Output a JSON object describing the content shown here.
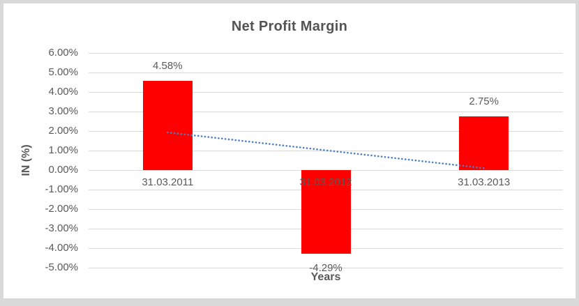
{
  "chart_data": {
    "type": "bar",
    "title": "Net Profit Margin",
    "xlabel": "Years",
    "ylabel": "IN (%)",
    "categories": [
      "31.03.2011",
      "31.03.2012",
      "31.03.2013"
    ],
    "values": [
      4.58,
      -4.29,
      2.75
    ],
    "data_labels": [
      "4.58%",
      "-4.29%",
      "2.75%"
    ],
    "ylim": [
      -5,
      6
    ],
    "y_tick_step": 1,
    "y_tick_labels": [
      "6.00%",
      "5.00%",
      "4.00%",
      "3.00%",
      "2.00%",
      "1.00%",
      "0.00%",
      "-1.00%",
      "-2.00%",
      "-3.00%",
      "-4.00%",
      "-5.00%"
    ],
    "grid": true,
    "legend": "none",
    "trendline": {
      "type": "linear",
      "style": "dotted"
    },
    "colors": {
      "bar": "#ff0000",
      "trendline": "#4a7ec0",
      "gridline": "#d9d9d9",
      "text": "#595959",
      "title_text": "#545454",
      "plot_background": "#ffffff",
      "frame_background": "#d9d9d9"
    }
  }
}
